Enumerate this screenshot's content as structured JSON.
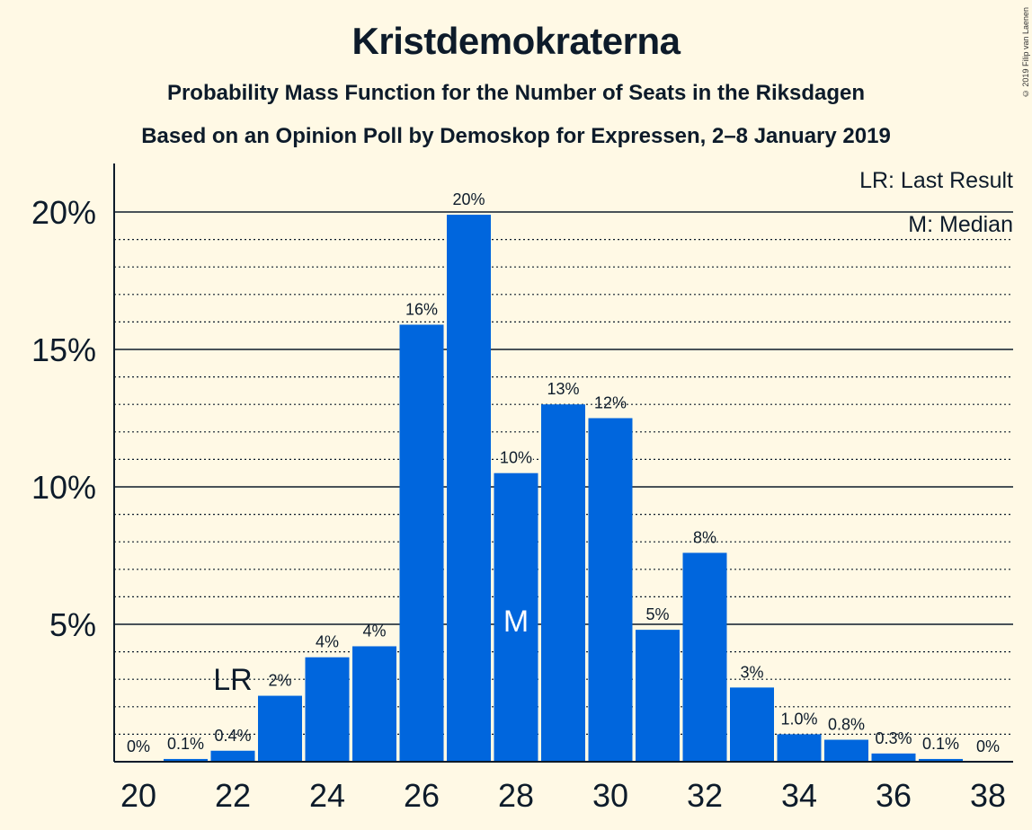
{
  "title": "Kristdemokraterna",
  "subtitle1": "Probability Mass Function for the Number of Seats in the Riksdagen",
  "subtitle2": "Based on an Opinion Poll by Demoskop for Expressen, 2–8 January 2019",
  "copyright": "© 2019 Filip van Laenen",
  "legend": {
    "last_result": "LR: Last Result",
    "median": "M: Median"
  },
  "colors": {
    "bar": "#0066DD",
    "background": "#FFF9E5",
    "text": "#0d1b2a",
    "marker_median": "#FFFFFF"
  },
  "chart_data": {
    "type": "bar",
    "x": [
      20,
      21,
      22,
      23,
      24,
      25,
      26,
      27,
      28,
      29,
      30,
      31,
      32,
      33,
      34,
      35,
      36,
      37,
      38
    ],
    "values": [
      0,
      0.1,
      0.4,
      2.4,
      3.8,
      4.2,
      15.9,
      19.9,
      10.5,
      13.0,
      12.5,
      4.8,
      7.6,
      2.7,
      1.0,
      0.8,
      0.3,
      0.1,
      0
    ],
    "data_labels": [
      "0%",
      "0.1%",
      "0.4%",
      "2%",
      "4%",
      "4%",
      "16%",
      "20%",
      "10%",
      "13%",
      "12%",
      "5%",
      "8%",
      "3%",
      "1.0%",
      "0.8%",
      "0.3%",
      "0.1%",
      "0%"
    ],
    "x_ticks": [
      20,
      22,
      24,
      26,
      28,
      30,
      32,
      34,
      36,
      38
    ],
    "y_ticks": [
      5,
      10,
      15,
      20
    ],
    "y_tick_labels": [
      "5%",
      "10%",
      "15%",
      "20%"
    ],
    "y_minor_step": 1,
    "ylim": [
      0,
      20.5
    ],
    "grid": true,
    "last_result_seat": 22,
    "last_result_label": "LR",
    "median_seat": 28,
    "median_label": "M"
  }
}
